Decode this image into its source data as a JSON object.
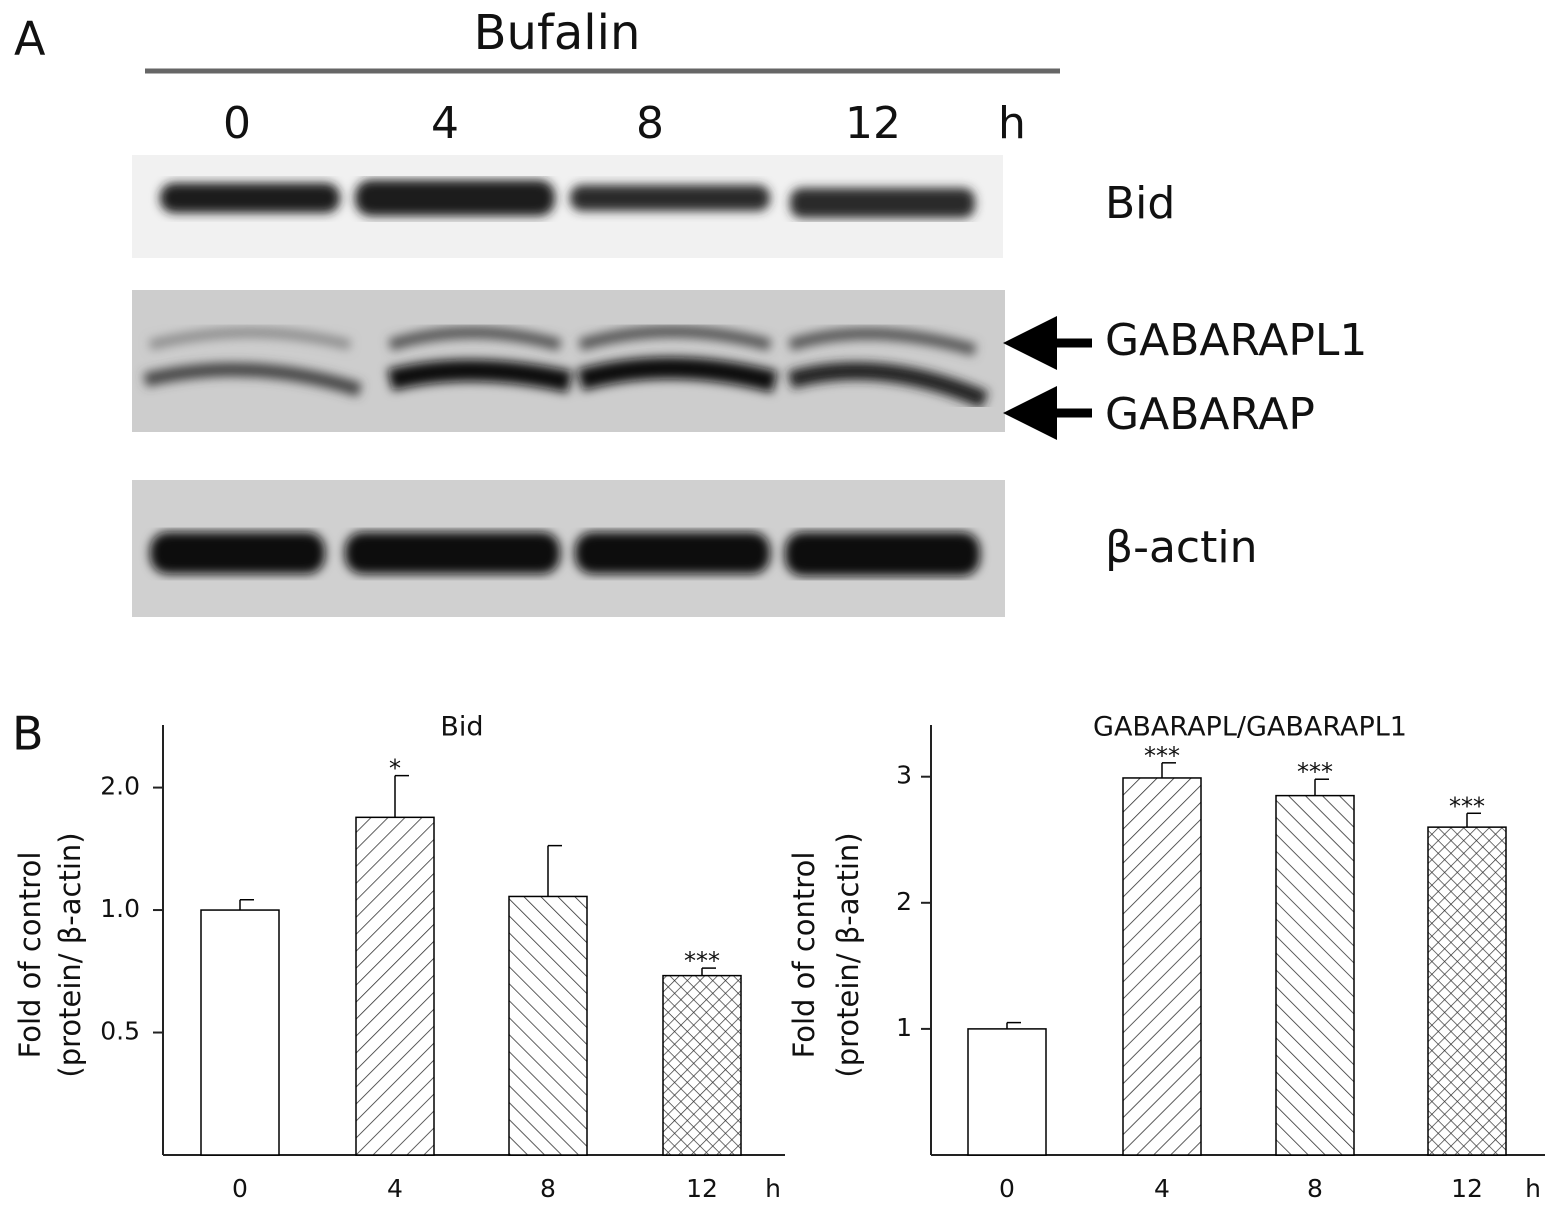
{
  "panel_labels": [
    "A",
    "B"
  ],
  "blot": {
    "treatment": "Bufalin",
    "lanes": [
      "0",
      "4",
      "8",
      "12"
    ],
    "lane_unit": "h",
    "proteins": [
      "Bid",
      "GABARAPL1",
      "GABARAP",
      "β-actin"
    ]
  },
  "chart_data": [
    {
      "type": "bar",
      "title": "Bid",
      "categories": [
        "0",
        "4",
        "8",
        "12"
      ],
      "xlabel": "h",
      "ylabel": [
        "Fold of control",
        "(protein/ β-actin)"
      ],
      "values": [
        1.0,
        1.69,
        1.08,
        0.69
      ],
      "errors": [
        0.06,
        0.45,
        0.36,
        0.03
      ],
      "annotations": [
        null,
        "*",
        null,
        "***"
      ],
      "hatch": [
        "none",
        "diagonal",
        "antidiagonal",
        "cross"
      ],
      "color": "#000000",
      "yscale": "log",
      "logbase": 2,
      "ylim": [
        0.25,
        2.85
      ],
      "yticks": [
        0.5,
        {
          "value": 1,
          "label": "1.0"
        },
        {
          "value": 2,
          "label": "2.0"
        }
      ]
    },
    {
      "type": "bar",
      "title": "GABARAPL/GABARAPL1",
      "categories": [
        "0",
        "4",
        "8",
        "12"
      ],
      "xlabel": "h",
      "ylabel": [
        "Fold of control",
        "(protein/ β-actin)"
      ],
      "values": [
        1.0,
        2.99,
        2.85,
        2.6
      ],
      "errors": [
        0.05,
        0.12,
        0.13,
        0.11
      ],
      "annotations": [
        null,
        "***",
        "***",
        "***"
      ],
      "hatch": [
        "none",
        "diagonal",
        "antidiagonal",
        "cross"
      ],
      "color": "#000000",
      "yscale": "linear",
      "ylim": [
        0,
        3.41
      ],
      "yticks": [
        1,
        2,
        3
      ]
    }
  ]
}
